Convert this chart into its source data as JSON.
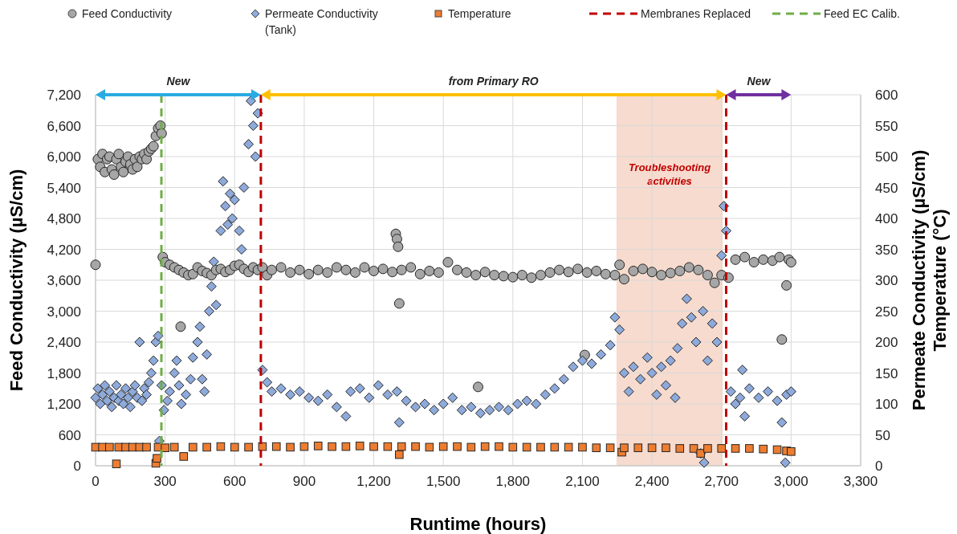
{
  "chart_data": {
    "type": "scatter",
    "xlabel": "Runtime (hours)",
    "ylabel": "Feed Conductivity (µS/cm)",
    "y2label": "Permeate Conductivity (µS/cm)\nTemperature (°C)",
    "xlim": [
      0,
      3300
    ],
    "xticks": [
      {
        "value": 0,
        "label": "0"
      },
      {
        "value": 300,
        "label": "300"
      },
      {
        "value": 600,
        "label": "600"
      },
      {
        "value": 900,
        "label": "900"
      },
      {
        "value": 1200,
        "label": "1,200"
      },
      {
        "value": 1500,
        "label": "1,500"
      },
      {
        "value": 1800,
        "label": "1,800"
      },
      {
        "value": 2100,
        "label": "2,100"
      },
      {
        "value": 2400,
        "label": "2,400"
      },
      {
        "value": 2700,
        "label": "2,700"
      },
      {
        "value": 3000,
        "label": "3,000"
      },
      {
        "value": 3300,
        "label": "3,300"
      }
    ],
    "ylim": [
      0,
      7200
    ],
    "yticks": [
      {
        "value": 0,
        "label": "0"
      },
      {
        "value": 600,
        "label": "600"
      },
      {
        "value": 1200,
        "label": "1,200"
      },
      {
        "value": 1800,
        "label": "1,800"
      },
      {
        "value": 2400,
        "label": "2,400"
      },
      {
        "value": 3000,
        "label": "3,000"
      },
      {
        "value": 3600,
        "label": "3,600"
      },
      {
        "value": 4200,
        "label": "4,200"
      },
      {
        "value": 4800,
        "label": "4,800"
      },
      {
        "value": 5400,
        "label": "5,400"
      },
      {
        "value": 6000,
        "label": "6,000"
      },
      {
        "value": 6600,
        "label": "6,600"
      },
      {
        "value": 7200,
        "label": "7,200"
      }
    ],
    "y2lim": [
      0,
      600
    ],
    "y2ticks": [
      0,
      50,
      100,
      150,
      200,
      250,
      300,
      350,
      400,
      450,
      500,
      550,
      600
    ],
    "grid": true,
    "legend": "top",
    "series": [
      {
        "name": "Feed Conductivity",
        "color": "#a6a6a6",
        "marker": "circle",
        "x": [
          0,
          10,
          20,
          30,
          40,
          50,
          60,
          70,
          80,
          90,
          100,
          110,
          120,
          130,
          140,
          150,
          160,
          170,
          180,
          190,
          200,
          210,
          220,
          230,
          240,
          250,
          260,
          270,
          280,
          285,
          290,
          300,
          320,
          340,
          360,
          367,
          380,
          400,
          420,
          440,
          460,
          480,
          500,
          520,
          540,
          560,
          580,
          600,
          620,
          640,
          660,
          680,
          700,
          720,
          740,
          760,
          800,
          840,
          880,
          920,
          960,
          1000,
          1040,
          1080,
          1120,
          1160,
          1200,
          1240,
          1280,
          1295,
          1300,
          1305,
          1310,
          1320,
          1360,
          1400,
          1440,
          1480,
          1520,
          1560,
          1600,
          1650,
          1640,
          1680,
          1720,
          1760,
          1800,
          1840,
          1880,
          1920,
          1960,
          2000,
          2040,
          2080,
          2110,
          2120,
          2160,
          2200,
          2240,
          2260,
          2280,
          2320,
          2360,
          2400,
          2440,
          2480,
          2520,
          2560,
          2600,
          2640,
          2670,
          2700,
          2730,
          2760,
          2800,
          2840,
          2880,
          2920,
          2950,
          2960,
          2980,
          2990,
          3000
        ],
        "values": [
          3900,
          5950,
          5800,
          6050,
          5700,
          5950,
          6000,
          5750,
          5650,
          5950,
          6050,
          5800,
          5700,
          5900,
          6000,
          5850,
          5750,
          5950,
          5800,
          6000,
          5950,
          6050,
          5950,
          6100,
          6150,
          6200,
          6400,
          6550,
          6600,
          6450,
          4050,
          3950,
          3900,
          3850,
          3800,
          2700,
          3750,
          3700,
          3720,
          3850,
          3780,
          3740,
          3700,
          3800,
          3820,
          3760,
          3800,
          3880,
          3900,
          3820,
          3760,
          3850,
          3800,
          3850,
          3700,
          3800,
          3850,
          3750,
          3800,
          3720,
          3800,
          3750,
          3850,
          3800,
          3750,
          3850,
          3780,
          3820,
          3760,
          4500,
          4400,
          4250,
          3150,
          3800,
          3850,
          3720,
          3780,
          3750,
          3950,
          3800,
          3750,
          1530,
          3700,
          3760,
          3700,
          3680,
          3660,
          3700,
          3650,
          3700,
          3750,
          3800,
          3760,
          3820,
          2150,
          3750,
          3780,
          3720,
          3700,
          3900,
          3620,
          3780,
          3820,
          3760,
          3700,
          3740,
          3780,
          3850,
          3800,
          3700,
          3550,
          3700,
          3650,
          4000,
          4050,
          3950,
          4000,
          3980,
          4050,
          2450,
          3500,
          4000,
          3950
        ]
      },
      {
        "name": "Permeate Conductivity (Tank)",
        "color": "#8eaadb",
        "marker": "diamond",
        "axis": "y2",
        "x": [
          0,
          10,
          20,
          30,
          40,
          50,
          60,
          70,
          80,
          90,
          100,
          110,
          120,
          130,
          140,
          150,
          160,
          170,
          180,
          190,
          200,
          210,
          220,
          230,
          240,
          250,
          260,
          270,
          275,
          285,
          295,
          310,
          320,
          340,
          350,
          360,
          370,
          390,
          410,
          420,
          440,
          450,
          460,
          470,
          480,
          490,
          500,
          510,
          520,
          540,
          550,
          560,
          570,
          580,
          590,
          600,
          620,
          630,
          640,
          660,
          670,
          680,
          690,
          700,
          720,
          740,
          760,
          800,
          840,
          880,
          920,
          960,
          1000,
          1040,
          1080,
          1100,
          1140,
          1180,
          1220,
          1260,
          1300,
          1310,
          1340,
          1380,
          1420,
          1460,
          1500,
          1540,
          1580,
          1620,
          1660,
          1700,
          1740,
          1780,
          1820,
          1860,
          1900,
          1940,
          1980,
          2020,
          2060,
          2100,
          2140,
          2180,
          2220,
          2240,
          2260,
          2280,
          2300,
          2320,
          2350,
          2380,
          2400,
          2420,
          2440,
          2460,
          2480,
          2500,
          2510,
          2530,
          2550,
          2570,
          2590,
          2610,
          2620,
          2640,
          2660,
          2680,
          2700,
          2710,
          2720,
          2740,
          2760,
          2780,
          2790,
          2800,
          2820,
          2860,
          2900,
          2940,
          2960,
          2980,
          3000,
          2975,
          2625
        ],
        "values": [
          110,
          125,
          100,
          115,
          130,
          105,
          120,
          95,
          110,
          130,
          105,
          115,
          100,
          125,
          110,
          95,
          120,
          130,
          110,
          200,
          105,
          125,
          115,
          135,
          150,
          170,
          200,
          210,
          40,
          130,
          90,
          105,
          120,
          150,
          170,
          130,
          100,
          115,
          140,
          175,
          200,
          225,
          140,
          120,
          180,
          250,
          290,
          330,
          260,
          380,
          460,
          420,
          390,
          440,
          400,
          430,
          380,
          350,
          450,
          520,
          590,
          550,
          500,
          570,
          155,
          135,
          120,
          125,
          115,
          120,
          110,
          105,
          115,
          95,
          80,
          120,
          125,
          110,
          130,
          115,
          120,
          70,
          105,
          95,
          100,
          90,
          100,
          110,
          90,
          95,
          85,
          90,
          95,
          90,
          100,
          105,
          100,
          115,
          125,
          140,
          160,
          170,
          165,
          180,
          195,
          240,
          220,
          150,
          120,
          160,
          140,
          175,
          150,
          115,
          160,
          130,
          170,
          110,
          190,
          230,
          270,
          240,
          200,
          20,
          250,
          170,
          230,
          200,
          340,
          420,
          380,
          120,
          100,
          110,
          155,
          80,
          125,
          110,
          120,
          105,
          70,
          115,
          120,
          5,
          5
        ]
      },
      {
        "name": "Temperature",
        "color": "#ed7d31",
        "marker": "square",
        "axis": "y2",
        "x": [
          0,
          30,
          60,
          90,
          100,
          130,
          160,
          190,
          220,
          260,
          265,
          270,
          300,
          340,
          380,
          420,
          480,
          540,
          600,
          660,
          720,
          780,
          840,
          900,
          960,
          1020,
          1080,
          1140,
          1200,
          1260,
          1310,
          1320,
          1380,
          1440,
          1500,
          1560,
          1620,
          1680,
          1740,
          1800,
          1860,
          1920,
          1980,
          2040,
          2100,
          2160,
          2220,
          2270,
          2280,
          2340,
          2400,
          2460,
          2520,
          2580,
          2610,
          2640,
          2700,
          2760,
          2820,
          2880,
          2940,
          2980,
          3000
        ],
        "values": [
          30,
          30,
          30,
          3,
          30,
          30,
          30,
          30,
          30,
          4,
          12,
          30,
          29,
          30,
          15,
          30,
          30,
          31,
          30,
          30,
          31,
          31,
          30,
          31,
          32,
          31,
          31,
          32,
          31,
          31,
          18,
          31,
          31,
          30,
          31,
          31,
          30,
          31,
          31,
          30,
          30,
          30,
          30,
          30,
          30,
          29,
          29,
          22,
          29,
          29,
          29,
          29,
          28,
          28,
          20,
          28,
          28,
          28,
          28,
          27,
          26,
          24,
          23
        ]
      }
    ],
    "ref_lines": [
      {
        "axis": "x",
        "value": 713,
        "label": "Membranes Replaced",
        "color": "#c00000",
        "line_style": "dashed"
      },
      {
        "axis": "x",
        "value": 2720,
        "color": "#c00000",
        "line_style": "dashed"
      },
      {
        "axis": "x",
        "value": 284,
        "label": "Feed EC Calib.",
        "color": "#70ad47",
        "line_style": "dashed"
      }
    ],
    "bands": [
      {
        "axis": "x",
        "from": 2247,
        "to": 2705,
        "label": "Troubleshooting activities",
        "color": "#f4d5c5"
      }
    ],
    "annotations": [
      "New",
      "from Primary RO",
      "New"
    ]
  }
}
